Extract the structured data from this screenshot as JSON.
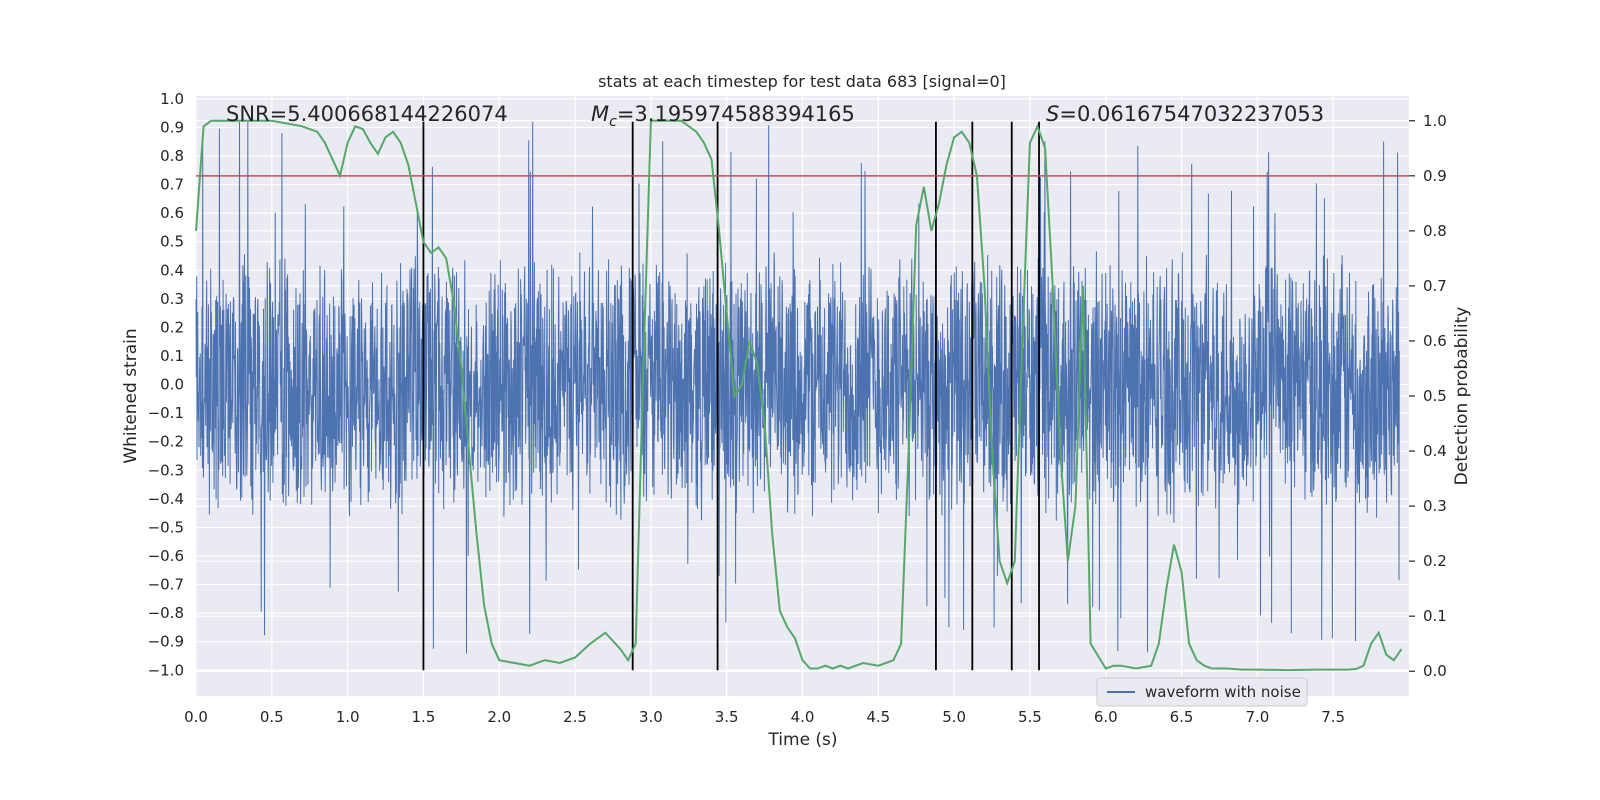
{
  "chart_data": {
    "type": "line",
    "title": "stats at each timestep for test data 683 [signal=0]",
    "xlabel": "Time (s)",
    "ylabel_left": "Whitened strain",
    "ylabel_right": "Detection probability",
    "xlim": [
      0.0,
      8.0
    ],
    "ylim_left": [
      -1.09,
      1.01
    ],
    "ylim_right": [
      -0.045,
      1.045
    ],
    "x_ticks": [
      0.0,
      0.5,
      1.0,
      1.5,
      2.0,
      2.5,
      3.0,
      3.5,
      4.0,
      4.5,
      5.0,
      5.5,
      6.0,
      6.5,
      7.0,
      7.5
    ],
    "x_tick_labels": [
      "0.0",
      "0.5",
      "1.0",
      "1.5",
      "2.0",
      "2.5",
      "3.0",
      "3.5",
      "4.0",
      "4.5",
      "5.0",
      "5.5",
      "6.0",
      "6.5",
      "7.0",
      "7.5"
    ],
    "y_left_ticks": [
      1.0,
      0.9,
      0.8,
      0.7,
      0.6,
      0.5,
      0.4,
      0.3,
      0.2,
      0.1,
      0.0,
      -0.1,
      -0.2,
      -0.3,
      -0.4,
      -0.5,
      -0.6,
      -0.7,
      -0.8,
      -0.9,
      -1.0
    ],
    "y_left_tick_labels": [
      "1.0",
      "0.9",
      "0.8",
      "0.7",
      "0.6",
      "0.5",
      "0.4",
      "0.3",
      "0.2",
      "0.1",
      "0.0",
      "−0.1",
      "−0.2",
      "−0.3",
      "−0.4",
      "−0.5",
      "−0.6",
      "−0.7",
      "−0.8",
      "−0.9",
      "−1.0"
    ],
    "y_right_ticks": [
      1.0,
      0.9,
      0.8,
      0.7,
      0.6,
      0.5,
      0.4,
      0.3,
      0.2,
      0.1,
      0.0
    ],
    "y_right_tick_labels": [
      "1.0",
      "0.9",
      "0.8",
      "0.7",
      "0.6",
      "0.5",
      "0.4",
      "0.3",
      "0.2",
      "0.1",
      "0.0"
    ],
    "grid": true,
    "legend": {
      "entries": [
        "waveform with noise"
      ],
      "placement": "lower-right"
    },
    "annotations": {
      "snr": "SNR=5.400668144226074",
      "mc_prefix": "M",
      "mc_sub": "c",
      "mc_value": "=3.195974588394165",
      "s_prefix": "S",
      "s_value": "=0.06167547032237053"
    },
    "threshold_line": {
      "y_right": 0.9,
      "color": "#c44e52"
    },
    "vertical_lines_x": [
      1.5,
      2.88,
      3.44,
      4.88,
      5.12,
      5.38,
      5.56
    ],
    "vertical_line_y_range_left": [
      -1.0,
      0.92
    ],
    "waveform": {
      "name": "waveform with noise",
      "color": "#4c72b0",
      "typical_amplitude": 0.45,
      "max_amplitude": 0.92,
      "min_amplitude": -1.0
    },
    "probability_series": {
      "color": "#55a868",
      "x": [
        0.0,
        0.05,
        0.1,
        0.2,
        0.3,
        0.4,
        0.5,
        0.6,
        0.7,
        0.8,
        0.85,
        0.9,
        0.95,
        1.0,
        1.05,
        1.1,
        1.15,
        1.2,
        1.25,
        1.3,
        1.35,
        1.4,
        1.45,
        1.5,
        1.55,
        1.6,
        1.65,
        1.7,
        1.75,
        1.8,
        1.85,
        1.9,
        1.95,
        2.0,
        2.1,
        2.2,
        2.3,
        2.4,
        2.5,
        2.6,
        2.7,
        2.8,
        2.85,
        2.9,
        2.95,
        3.0,
        3.1,
        3.2,
        3.3,
        3.35,
        3.4,
        3.45,
        3.5,
        3.55,
        3.6,
        3.65,
        3.7,
        3.75,
        3.8,
        3.85,
        3.9,
        3.95,
        4.0,
        4.05,
        4.1,
        4.15,
        4.2,
        4.25,
        4.3,
        4.4,
        4.5,
        4.6,
        4.65,
        4.7,
        4.75,
        4.8,
        4.85,
        4.9,
        4.95,
        5.0,
        5.05,
        5.1,
        5.15,
        5.2,
        5.25,
        5.3,
        5.35,
        5.4,
        5.45,
        5.5,
        5.55,
        5.6,
        5.65,
        5.7,
        5.75,
        5.8,
        5.85,
        5.9,
        6.0,
        6.05,
        6.1,
        6.2,
        6.3,
        6.35,
        6.4,
        6.45,
        6.5,
        6.55,
        6.6,
        6.65,
        6.7,
        6.8,
        6.9,
        7.0,
        7.2,
        7.4,
        7.6,
        7.65,
        7.7,
        7.75,
        7.8,
        7.85,
        7.9,
        7.95
      ],
      "y": [
        0.8,
        0.99,
        1.0,
        1.0,
        1.0,
        1.0,
        1.0,
        0.995,
        0.99,
        0.98,
        0.96,
        0.93,
        0.9,
        0.96,
        0.99,
        0.985,
        0.96,
        0.94,
        0.97,
        0.98,
        0.96,
        0.92,
        0.85,
        0.78,
        0.76,
        0.77,
        0.75,
        0.67,
        0.55,
        0.4,
        0.25,
        0.12,
        0.05,
        0.02,
        0.015,
        0.01,
        0.02,
        0.015,
        0.025,
        0.05,
        0.07,
        0.04,
        0.02,
        0.05,
        0.55,
        1.0,
        1.0,
        1.0,
        0.98,
        0.96,
        0.93,
        0.8,
        0.65,
        0.5,
        0.52,
        0.6,
        0.56,
        0.45,
        0.25,
        0.11,
        0.08,
        0.06,
        0.02,
        0.005,
        0.005,
        0.01,
        0.005,
        0.01,
        0.005,
        0.015,
        0.01,
        0.02,
        0.05,
        0.4,
        0.81,
        0.88,
        0.8,
        0.85,
        0.92,
        0.97,
        0.98,
        0.96,
        0.9,
        0.7,
        0.4,
        0.2,
        0.16,
        0.2,
        0.6,
        0.96,
        0.99,
        0.95,
        0.7,
        0.4,
        0.2,
        0.3,
        0.7,
        0.05,
        0.005,
        0.01,
        0.01,
        0.005,
        0.01,
        0.05,
        0.15,
        0.23,
        0.18,
        0.05,
        0.02,
        0.01,
        0.005,
        0.005,
        0.003,
        0.003,
        0.002,
        0.003,
        0.003,
        0.004,
        0.01,
        0.05,
        0.07,
        0.03,
        0.02,
        0.04
      ]
    }
  }
}
